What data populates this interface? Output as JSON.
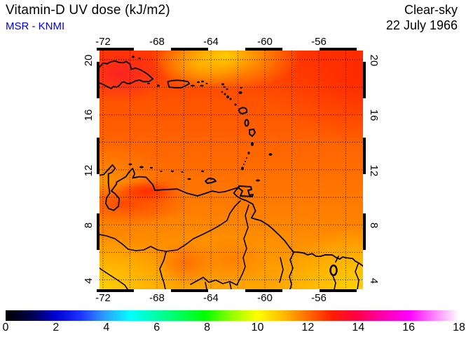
{
  "header": {
    "title": "Vitamin-D UV dose (kJ/m2)",
    "source": "MSR - KNMI",
    "source_color": "#0000e0",
    "condition": "Clear-sky",
    "date": "22 July 1966"
  },
  "map": {
    "lon_tick_labels": [
      "-72",
      "-68",
      "-64",
      "-60",
      "-56"
    ],
    "lat_tick_labels": [
      "20",
      "16",
      "12",
      "8",
      "4"
    ],
    "grid_step_deg": 2,
    "lon_range": [
      -72.3,
      -52.7
    ],
    "lat_range": [
      3.3,
      20.7
    ]
  },
  "colorbar": {
    "min": 0,
    "max": 18,
    "tick_labels": [
      "0",
      "2",
      "4",
      "6",
      "8",
      "10",
      "12",
      "14",
      "16",
      "18"
    ],
    "stops": [
      [
        0,
        "#000000"
      ],
      [
        0.055,
        "#000046"
      ],
      [
        0.11,
        "#0000d2"
      ],
      [
        0.165,
        "#1e32ff"
      ],
      [
        0.22,
        "#2da0ff"
      ],
      [
        0.275,
        "#00ffff"
      ],
      [
        0.33,
        "#00ffaa"
      ],
      [
        0.385,
        "#00ff5a"
      ],
      [
        0.44,
        "#00ff00"
      ],
      [
        0.5,
        "#96ff00"
      ],
      [
        0.555,
        "#ffff00"
      ],
      [
        0.61,
        "#ffbe00"
      ],
      [
        0.665,
        "#ff6e00"
      ],
      [
        0.72,
        "#ff1e00"
      ],
      [
        0.775,
        "#ff0046"
      ],
      [
        0.83,
        "#ff00aa"
      ],
      [
        0.89,
        "#ff00ff"
      ],
      [
        0.945,
        "#ff82ff"
      ],
      [
        1,
        "#ffffff"
      ]
    ]
  },
  "chart_data": {
    "type": "heatmap",
    "title": "Vitamin-D UV dose (kJ/m2)",
    "scenario": "Clear-sky",
    "date": "22 July 1966",
    "source": "MSR - KNMI",
    "units": "kJ/m2",
    "region": "Caribbean and northern South America",
    "lon_ticks": [
      -72,
      -68,
      -64,
      -60,
      -56
    ],
    "lat_ticks": [
      20,
      16,
      12,
      8,
      4
    ],
    "grid_step_deg": 2,
    "colorbar_range": [
      0,
      18
    ],
    "colorbar_tick_step": 2,
    "sample_lons": [
      -72,
      -68,
      -64,
      -60,
      -56
    ],
    "sample_lats": [
      20,
      16,
      12,
      8,
      4
    ],
    "approx_values": [
      [
        12.9,
        12.4,
        11.0,
        12.2,
        12.4
      ],
      [
        12.5,
        12.2,
        12.0,
        12.2,
        12.5
      ],
      [
        11.8,
        11.7,
        11.6,
        11.8,
        12.1
      ],
      [
        12.5,
        11.4,
        11.3,
        11.3,
        11.0
      ],
      [
        10.4,
        11.3,
        11.6,
        10.8,
        10.3
      ]
    ],
    "notes": "rows ordered north to south; maximum ~13 (red) over Hispaniola and NE corner, minimum ~10 (yellow) in SW and SE corners"
  }
}
